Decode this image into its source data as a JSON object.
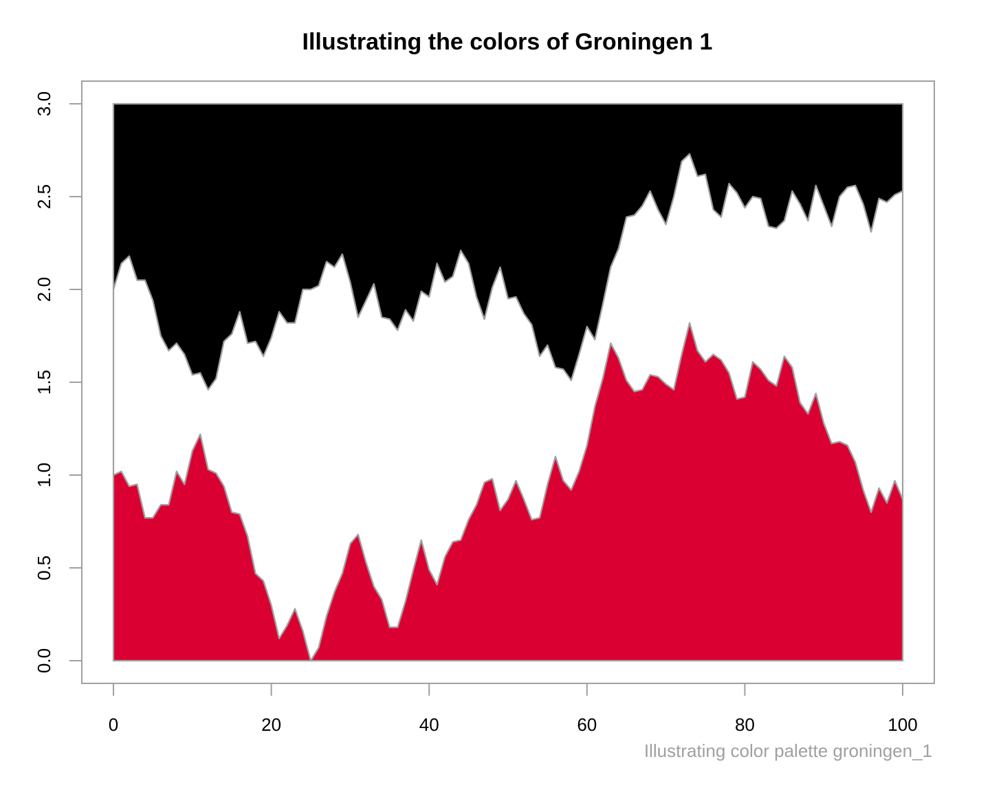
{
  "chart_data": {
    "type": "area",
    "title": "Illustrating the colors of Groningen 1",
    "subtitle": "Illustrating color palette groningen_1",
    "xlabel": "",
    "ylabel": "",
    "xlim": [
      0,
      100
    ],
    "ylim": [
      0,
      3
    ],
    "x_ticks": [
      0,
      20,
      40,
      60,
      80,
      100
    ],
    "x_tick_labels": [
      "0",
      "20",
      "40",
      "60",
      "80",
      "100"
    ],
    "y_ticks": [
      0,
      0.5,
      1,
      1.5,
      2,
      2.5,
      3
    ],
    "y_tick_labels": [
      "0.0",
      "0.5",
      "1.0",
      "1.5",
      "2.0",
      "2.5",
      "3.0"
    ],
    "stacked": true,
    "grid": false,
    "legend": "none",
    "outline_color": "#a0a0a0",
    "series": [
      {
        "color": "#db0032",
        "values": [
          1.0,
          1.02,
          0.94,
          0.95,
          0.77,
          0.77,
          0.84,
          0.84,
          1.02,
          0.95,
          1.13,
          1.22,
          1.03,
          1.01,
          0.94,
          0.8,
          0.79,
          0.67,
          0.47,
          0.43,
          0.3,
          0.12,
          0.19,
          0.28,
          0.16,
          0.0,
          0.07,
          0.24,
          0.37,
          0.47,
          0.63,
          0.68,
          0.53,
          0.4,
          0.33,
          0.18,
          0.18,
          0.32,
          0.49,
          0.65,
          0.49,
          0.41,
          0.56,
          0.64,
          0.65,
          0.76,
          0.84,
          0.96,
          0.98,
          0.81,
          0.87,
          0.97,
          0.87,
          0.76,
          0.77,
          0.95,
          1.1,
          0.97,
          0.92,
          1.02,
          1.16,
          1.37,
          1.52,
          1.71,
          1.63,
          1.51,
          1.45,
          1.46,
          1.54,
          1.53,
          1.49,
          1.46,
          1.65,
          1.82,
          1.67,
          1.61,
          1.65,
          1.62,
          1.55,
          1.41,
          1.42,
          1.61,
          1.57,
          1.51,
          1.48,
          1.64,
          1.58,
          1.39,
          1.33,
          1.44,
          1.28,
          1.17,
          1.18,
          1.16,
          1.07,
          0.92,
          0.8,
          0.93,
          0.85,
          0.97,
          0.87
        ]
      },
      {
        "color": "#ffffff",
        "values": [
          2.0,
          2.14,
          2.18,
          2.05,
          2.05,
          1.94,
          1.75,
          1.67,
          1.71,
          1.65,
          1.54,
          1.55,
          1.46,
          1.52,
          1.72,
          1.76,
          1.88,
          1.71,
          1.72,
          1.64,
          1.74,
          1.88,
          1.82,
          1.82,
          2.0,
          2.0,
          2.02,
          2.15,
          2.12,
          2.19,
          2.04,
          1.85,
          1.94,
          2.03,
          1.85,
          1.84,
          1.78,
          1.89,
          1.83,
          1.99,
          1.96,
          2.14,
          2.04,
          2.07,
          2.21,
          2.14,
          1.96,
          1.84,
          2.01,
          2.12,
          1.95,
          1.96,
          1.87,
          1.81,
          1.64,
          1.7,
          1.58,
          1.57,
          1.51,
          1.65,
          1.8,
          1.73,
          1.92,
          2.12,
          2.22,
          2.39,
          2.4,
          2.45,
          2.53,
          2.43,
          2.35,
          2.5,
          2.69,
          2.73,
          2.61,
          2.62,
          2.43,
          2.39,
          2.57,
          2.52,
          2.44,
          2.5,
          2.49,
          2.34,
          2.33,
          2.37,
          2.53,
          2.46,
          2.37,
          2.56,
          2.45,
          2.34,
          2.5,
          2.55,
          2.56,
          2.46,
          2.31,
          2.49,
          2.47,
          2.51,
          2.53
        ]
      },
      {
        "color": "#000000",
        "values": [
          3,
          3,
          3,
          3,
          3,
          3,
          3,
          3,
          3,
          3,
          3,
          3,
          3,
          3,
          3,
          3,
          3,
          3,
          3,
          3,
          3,
          3,
          3,
          3,
          3,
          3,
          3,
          3,
          3,
          3,
          3,
          3,
          3,
          3,
          3,
          3,
          3,
          3,
          3,
          3,
          3,
          3,
          3,
          3,
          3,
          3,
          3,
          3,
          3,
          3,
          3,
          3,
          3,
          3,
          3,
          3,
          3,
          3,
          3,
          3,
          3,
          3,
          3,
          3,
          3,
          3,
          3,
          3,
          3,
          3,
          3,
          3,
          3,
          3,
          3,
          3,
          3,
          3,
          3,
          3,
          3,
          3,
          3,
          3,
          3,
          3,
          3,
          3,
          3,
          3,
          3,
          3,
          3,
          3,
          3,
          3,
          3,
          3,
          3,
          3,
          3
        ]
      }
    ]
  }
}
